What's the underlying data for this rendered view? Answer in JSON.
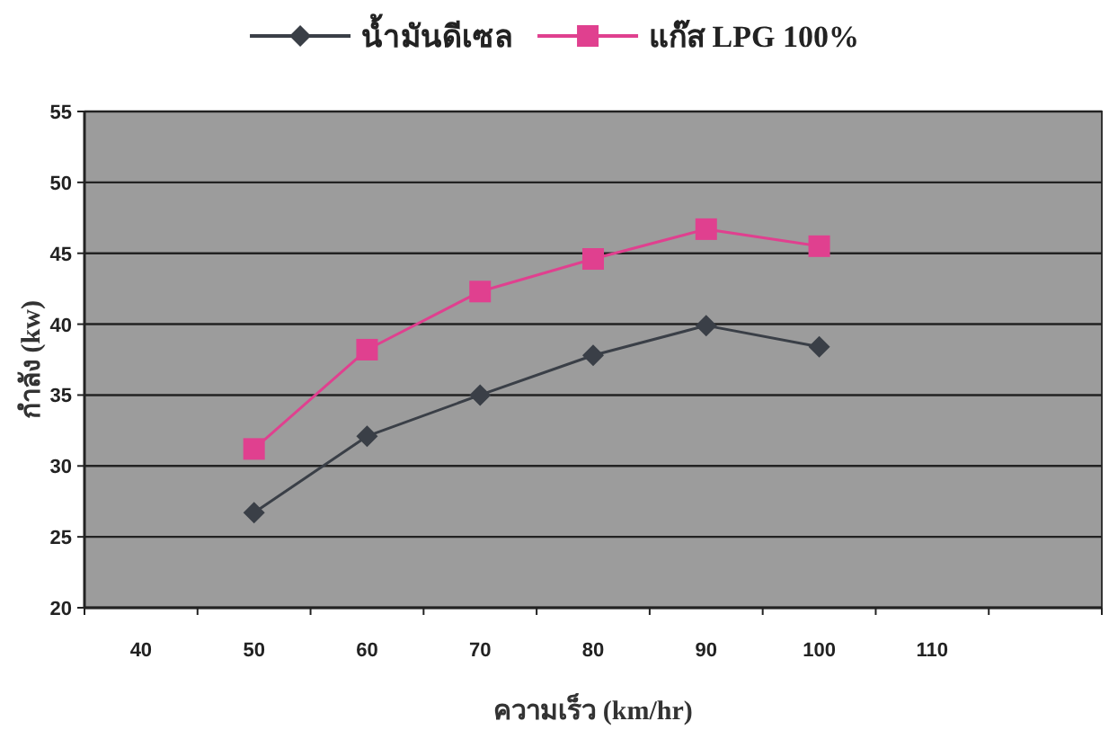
{
  "chart_data": {
    "type": "line",
    "xlabel": "ความเร็ว (km/hr)",
    "ylabel": "กำลัง (kw)",
    "categories": [
      "40",
      "50",
      "60",
      "70",
      "80",
      "90",
      "100",
      "110",
      null
    ],
    "series": [
      {
        "name": "น้ำมันดีเซล",
        "color": "#3a3f47",
        "marker": "diamond",
        "values": [
          null,
          26.7,
          32.1,
          35.0,
          37.8,
          39.9,
          38.4,
          null,
          null
        ]
      },
      {
        "name": "แก๊ส LPG 100%",
        "color": "#e0408f",
        "marker": "square",
        "values": [
          null,
          31.2,
          38.2,
          42.3,
          44.6,
          46.7,
          45.5,
          null,
          null
        ]
      }
    ],
    "ylim": [
      20,
      55
    ],
    "yticks": [
      20,
      25,
      30,
      35,
      40,
      45,
      50,
      55
    ],
    "grid": "y",
    "legend": "top"
  }
}
